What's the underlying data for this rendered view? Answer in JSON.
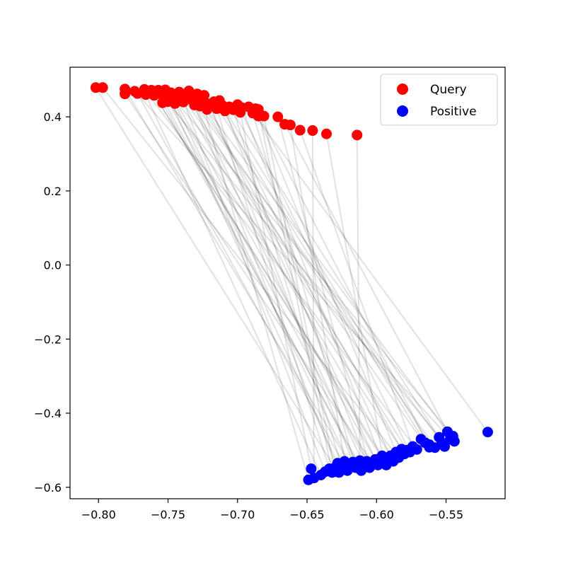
{
  "chart_data": {
    "type": "scatter",
    "xlim": [
      -0.8205,
      -0.5075
    ],
    "ylim": [
      -0.631,
      0.534
    ],
    "x_ticks": [
      -0.8,
      -0.75,
      -0.7,
      -0.65,
      -0.6,
      -0.55
    ],
    "x_tick_labels": [
      "−0.80",
      "−0.75",
      "−0.70",
      "−0.65",
      "−0.60",
      "−0.55"
    ],
    "y_ticks": [
      0.4,
      0.2,
      0.0,
      -0.2,
      -0.4,
      -0.6
    ],
    "y_tick_labels": [
      "0.4",
      "0.2",
      "0.0",
      "−0.2",
      "−0.4",
      "−0.6"
    ],
    "grid": false,
    "legend_position": "top-right",
    "series": [
      {
        "name": "Query",
        "color": "#ff0000",
        "points": [
          [
            -0.802,
            0.479
          ],
          [
            -0.797,
            0.479
          ],
          [
            -0.781,
            0.475
          ],
          [
            -0.781,
            0.462
          ],
          [
            -0.774,
            0.469
          ],
          [
            -0.772,
            0.463
          ],
          [
            -0.767,
            0.474
          ],
          [
            -0.766,
            0.46
          ],
          [
            -0.762,
            0.472
          ],
          [
            -0.76,
            0.458
          ],
          [
            -0.757,
            0.472
          ],
          [
            -0.755,
            0.462
          ],
          [
            -0.752,
            0.473
          ],
          [
            -0.751,
            0.454
          ],
          [
            -0.75,
            0.441
          ],
          [
            -0.748,
            0.465
          ],
          [
            -0.746,
            0.45
          ],
          [
            -0.745,
            0.436
          ],
          [
            -0.742,
            0.467
          ],
          [
            -0.74,
            0.453
          ],
          [
            -0.739,
            0.44
          ],
          [
            -0.737,
            0.458
          ],
          [
            -0.735,
            0.47
          ],
          [
            -0.733,
            0.446
          ],
          [
            -0.731,
            0.432
          ],
          [
            -0.729,
            0.462
          ],
          [
            -0.726,
            0.448
          ],
          [
            -0.724,
            0.458
          ],
          [
            -0.722,
            0.42
          ],
          [
            -0.72,
            0.435
          ],
          [
            -0.717,
            0.441
          ],
          [
            -0.715,
            0.422
          ],
          [
            -0.713,
            0.444
          ],
          [
            -0.711,
            0.431
          ],
          [
            -0.709,
            0.416
          ],
          [
            -0.706,
            0.427
          ],
          [
            -0.703,
            0.419
          ],
          [
            -0.7,
            0.433
          ],
          [
            -0.698,
            0.412
          ],
          [
            -0.697,
            0.425
          ],
          [
            -0.692,
            0.427
          ],
          [
            -0.689,
            0.41
          ],
          [
            -0.687,
            0.422
          ],
          [
            -0.685,
            0.42
          ],
          [
            -0.685,
            0.402
          ],
          [
            -0.681,
            0.402
          ],
          [
            -0.671,
            0.4
          ],
          [
            -0.666,
            0.38
          ],
          [
            -0.662,
            0.378
          ],
          [
            -0.655,
            0.364
          ],
          [
            -0.646,
            0.363
          ],
          [
            -0.636,
            0.354
          ],
          [
            -0.614,
            0.351
          ],
          [
            -0.754,
            0.438
          ],
          [
            -0.727,
            0.429
          ]
        ]
      },
      {
        "name": "Positive",
        "color": "#0000ff",
        "points": [
          [
            -0.649,
            -0.58
          ],
          [
            -0.647,
            -0.55
          ],
          [
            -0.645,
            -0.575
          ],
          [
            -0.64,
            -0.567
          ],
          [
            -0.637,
            -0.558
          ],
          [
            -0.634,
            -0.55
          ],
          [
            -0.632,
            -0.56
          ],
          [
            -0.63,
            -0.547
          ],
          [
            -0.628,
            -0.535
          ],
          [
            -0.627,
            -0.56
          ],
          [
            -0.625,
            -0.545
          ],
          [
            -0.623,
            -0.53
          ],
          [
            -0.621,
            -0.555
          ],
          [
            -0.619,
            -0.54
          ],
          [
            -0.617,
            -0.532
          ],
          [
            -0.615,
            -0.547
          ],
          [
            -0.613,
            -0.535
          ],
          [
            -0.611,
            -0.555
          ],
          [
            -0.609,
            -0.54
          ],
          [
            -0.607,
            -0.53
          ],
          [
            -0.605,
            -0.547
          ],
          [
            -0.603,
            -0.535
          ],
          [
            -0.601,
            -0.525
          ],
          [
            -0.599,
            -0.54
          ],
          [
            -0.597,
            -0.52
          ],
          [
            -0.595,
            -0.53
          ],
          [
            -0.593,
            -0.54
          ],
          [
            -0.59,
            -0.515
          ],
          [
            -0.588,
            -0.53
          ],
          [
            -0.586,
            -0.505
          ],
          [
            -0.584,
            -0.52
          ],
          [
            -0.582,
            -0.497
          ],
          [
            -0.58,
            -0.51
          ],
          [
            -0.576,
            -0.505
          ],
          [
            -0.574,
            -0.49
          ],
          [
            -0.571,
            -0.498
          ],
          [
            -0.568,
            -0.47
          ],
          [
            -0.565,
            -0.48
          ],
          [
            -0.562,
            -0.492
          ],
          [
            -0.558,
            -0.493
          ],
          [
            -0.555,
            -0.465
          ],
          [
            -0.553,
            -0.48
          ],
          [
            -0.551,
            -0.49
          ],
          [
            -0.549,
            -0.45
          ],
          [
            -0.547,
            -0.47
          ],
          [
            -0.545,
            -0.462
          ],
          [
            -0.544,
            -0.476
          ],
          [
            -0.52,
            -0.451
          ],
          [
            -0.612,
            -0.528
          ],
          [
            -0.596,
            -0.515
          ],
          [
            -0.578,
            -0.5
          ],
          [
            -0.562,
            -0.485
          ],
          [
            -0.63,
            -0.558
          ],
          [
            -0.618,
            -0.545
          ],
          [
            -0.606,
            -0.537
          ]
        ]
      }
    ],
    "connector_color": "#000000"
  }
}
